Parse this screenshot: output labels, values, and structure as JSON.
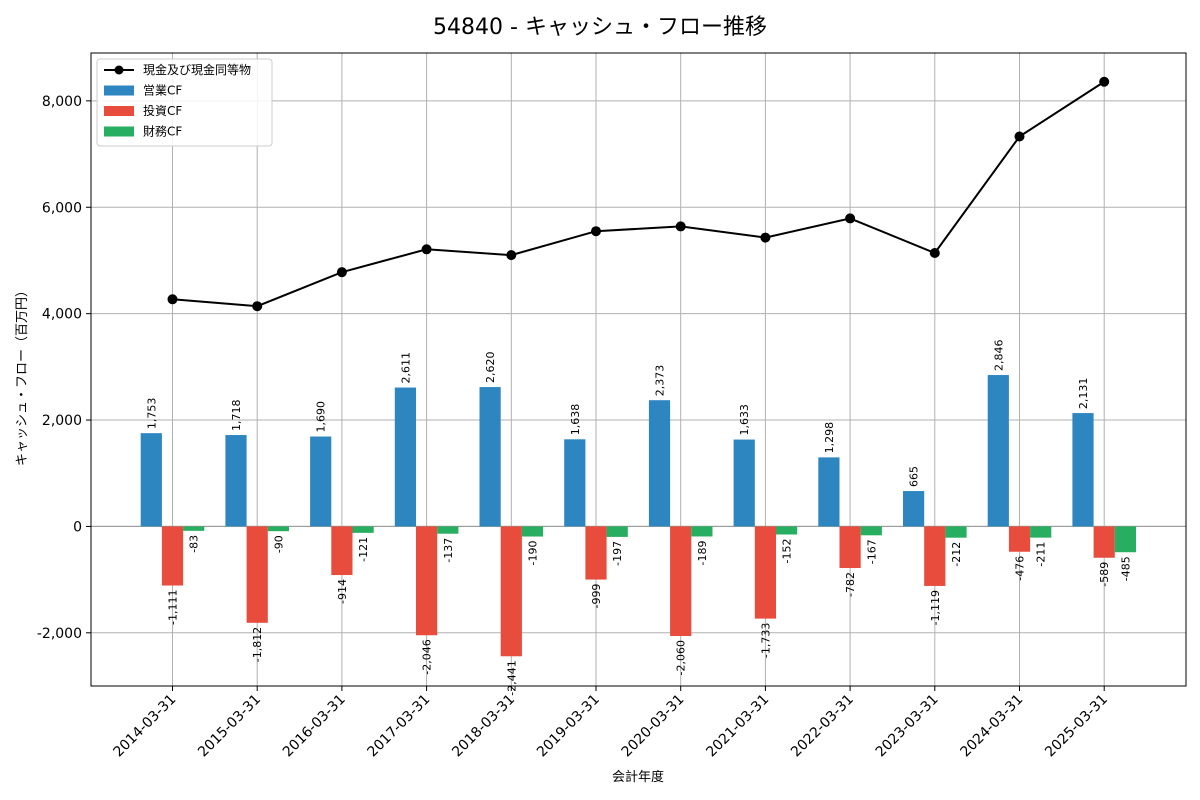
{
  "chart_data": {
    "type": "bar",
    "title": "54840 - キャッシュ・フロー推移",
    "xlabel": "会計年度",
    "ylabel": "キャッシュ・フロー（百万円）",
    "ylim": [
      -3000,
      8900
    ],
    "yticks": [
      -2000,
      0,
      2000,
      4000,
      6000,
      8000
    ],
    "ytick_labels": [
      "-2,000",
      "0",
      "2,000",
      "4,000",
      "6,000",
      "8,000"
    ],
    "grid": true,
    "legend_position": "top-left",
    "categories": [
      "2014-03-31",
      "2015-03-31",
      "2016-03-31",
      "2017-03-31",
      "2018-03-31",
      "2019-03-31",
      "2020-03-31",
      "2021-03-31",
      "2022-03-31",
      "2023-03-31",
      "2024-03-31",
      "2025-03-31"
    ],
    "line_series": {
      "name": "現金及び現金同等物",
      "color": "#000000",
      "values": [
        4270,
        4140,
        4780,
        5210,
        5100,
        5550,
        5640,
        5430,
        5790,
        5140,
        7330,
        8360
      ]
    },
    "series": [
      {
        "name": "営業CF",
        "color": "#2e86c1",
        "values": [
          1753,
          1718,
          1690,
          2611,
          2620,
          1638,
          2373,
          1633,
          1298,
          665,
          2846,
          2131
        ],
        "labels": [
          "1,753",
          "1,718",
          "1,690",
          "2,611",
          "2,620",
          "1,638",
          "2,373",
          "1,633",
          "1,298",
          "665",
          "2,846",
          "2,131"
        ]
      },
      {
        "name": "投資CF",
        "color": "#e74c3c",
        "values": [
          -1111,
          -1812,
          -914,
          -2046,
          -2441,
          -999,
          -2060,
          -1733,
          -782,
          -1119,
          -476,
          -589
        ],
        "labels": [
          "-1,111",
          "-1,812",
          "-914",
          "-2,046",
          "-2,441",
          "-999",
          "-2,060",
          "-1,733",
          "-782",
          "-1,119",
          "-476",
          "-589"
        ]
      },
      {
        "name": "財務CF",
        "color": "#27ae60",
        "values": [
          -83,
          -90,
          -121,
          -137,
          -190,
          -197,
          -189,
          -152,
          -167,
          -212,
          -211,
          -485
        ],
        "labels": [
          "-83",
          "-90",
          "-121",
          "-137",
          "-190",
          "-197",
          "-189",
          "-152",
          "-167",
          "-212",
          "-211",
          "-485"
        ]
      }
    ]
  }
}
